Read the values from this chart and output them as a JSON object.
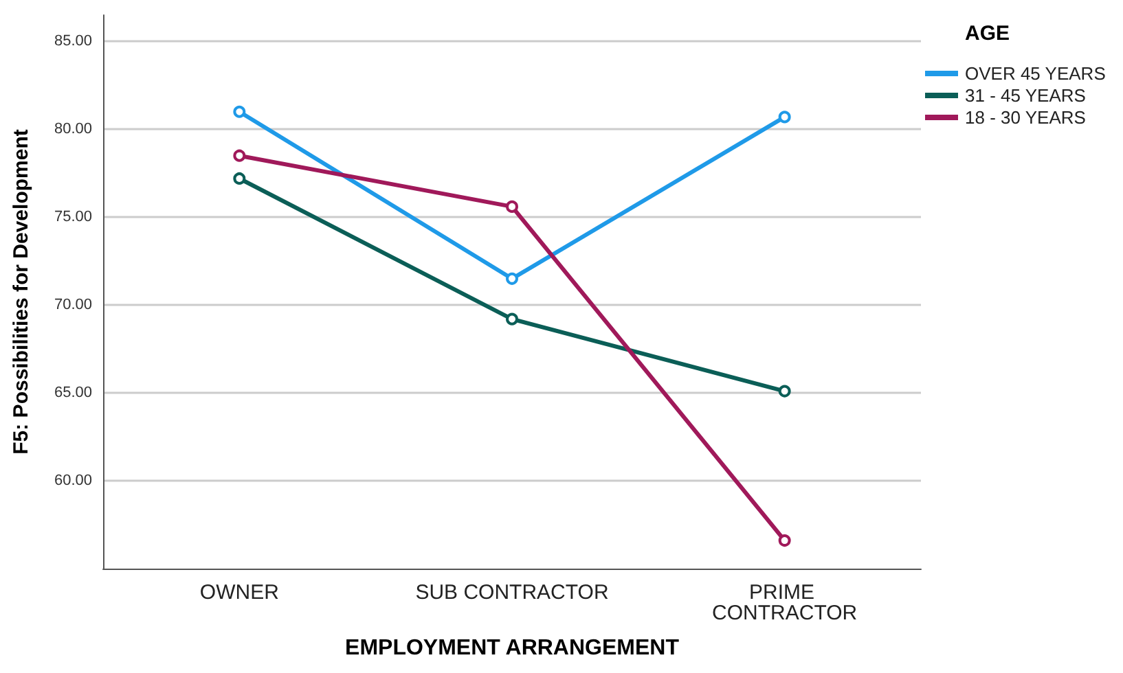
{
  "chart_data": {
    "type": "line",
    "xlabel": "EMPLOYMENT ARRANGEMENT",
    "ylabel": "F5: Possibilities for Development",
    "legend_title": "AGE",
    "categories": [
      "OWNER",
      "SUB CONTRACTOR",
      "PRIME CONTRACTOR"
    ],
    "series": [
      {
        "name": "OVER 45 YEARS",
        "color": "#1f9ae8",
        "values": [
          81.0,
          71.5,
          80.7
        ]
      },
      {
        "name": "31 - 45 YEARS",
        "color": "#0b5e57",
        "values": [
          77.2,
          69.2,
          65.1
        ]
      },
      {
        "name": "18 - 30 YEARS",
        "color": "#a0195a",
        "values": [
          78.5,
          75.6,
          56.6
        ]
      }
    ],
    "ylim": [
      55,
      86.5
    ],
    "yticks": [
      {
        "value": 60,
        "label": "60.00"
      },
      {
        "value": 65,
        "label": "65.00"
      },
      {
        "value": 70,
        "label": "70.00"
      },
      {
        "value": 75,
        "label": "75.00"
      },
      {
        "value": 80,
        "label": "80.00"
      },
      {
        "value": 85,
        "label": "85.00"
      }
    ],
    "grid": "y",
    "legend": "top right",
    "marker": "circle",
    "line_style": "solid"
  }
}
